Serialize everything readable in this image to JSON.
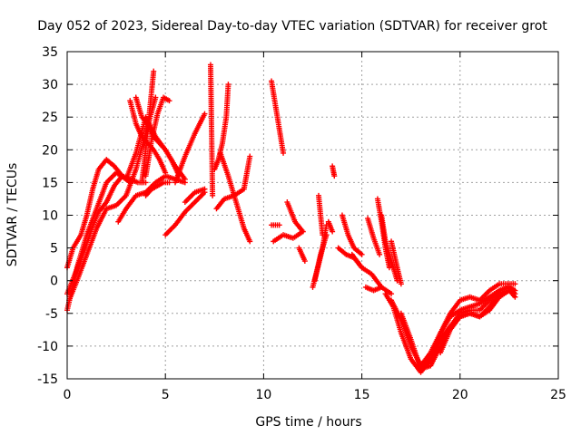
{
  "chart_data": {
    "type": "scatter",
    "title": "Day 052 of 2023, Sidereal Day-to-day VTEC variation (SDTVAR) for receiver grot",
    "xlabel": "GPS time / hours",
    "ylabel": "SDTVAR / TECUs",
    "xlim": [
      0,
      25
    ],
    "ylim": [
      -15,
      35
    ],
    "xticks": [
      0,
      5,
      10,
      15,
      20,
      25
    ],
    "yticks": [
      -15,
      -10,
      -5,
      0,
      5,
      10,
      15,
      20,
      25,
      30,
      35
    ],
    "grid": true,
    "marker": "plus",
    "color": "#ff0000",
    "series": [
      {
        "x": [
          0.0,
          0.5,
          1.0,
          1.5,
          2.0,
          2.5,
          3.0,
          3.5,
          4.0,
          4.5,
          5.0,
          5.5,
          6.0
        ],
        "y": [
          -4.5,
          2.0,
          7.0,
          11.0,
          15.0,
          16.5,
          15.5,
          19.5,
          25.0,
          22.0,
          20.0,
          17.5,
          15.5
        ]
      },
      {
        "x": [
          0.0,
          0.4,
          0.8,
          1.2,
          1.6,
          2.0,
          2.4,
          2.8,
          3.2,
          3.6,
          4.0
        ],
        "y": [
          -2.0,
          1.0,
          4.0,
          7.5,
          10.5,
          12.0,
          14.5,
          16.0,
          15.5,
          15.0,
          15.0
        ]
      },
      {
        "x": [
          0.0,
          0.3,
          0.7,
          1.0,
          1.3,
          1.6,
          2.0,
          2.4,
          2.8,
          3.2
        ],
        "y": [
          2.0,
          5.0,
          7.0,
          10.0,
          14.0,
          17.0,
          18.5,
          17.5,
          16.0,
          15.0
        ]
      },
      {
        "x": [
          0.1,
          0.5,
          1.0,
          1.5,
          2.0,
          2.5,
          3.0,
          3.5,
          4.0,
          4.5
        ],
        "y": [
          -3.0,
          0.0,
          4.0,
          8.0,
          11.0,
          11.5,
          13.0,
          17.0,
          22.5,
          28.0
        ]
      },
      {
        "x": [
          3.2,
          3.5,
          3.8,
          4.1,
          4.4,
          4.7,
          5.0
        ],
        "y": [
          27.5,
          24.0,
          22.0,
          21.0,
          20.0,
          18.5,
          16.5
        ]
      },
      {
        "x": [
          3.5,
          3.8,
          4.1,
          4.4,
          4.7,
          5.0,
          5.3,
          5.7
        ],
        "y": [
          28.0,
          25.0,
          24.0,
          22.0,
          21.0,
          20.0,
          18.5,
          16.0
        ]
      },
      {
        "x": [
          3.8,
          4.0,
          4.2,
          4.4
        ],
        "y": [
          15.0,
          20.0,
          26.0,
          32.0
        ]
      },
      {
        "x": [
          4.0,
          4.3,
          4.6,
          4.9,
          5.2
        ],
        "y": [
          16.0,
          21.5,
          25.5,
          28.0,
          27.5
        ]
      },
      {
        "x": [
          4.0,
          4.3,
          4.6,
          4.9,
          5.2
        ],
        "y": [
          13.0,
          14.0,
          14.5,
          15.0,
          15.0
        ]
      },
      {
        "x": [
          2.6,
          3.0,
          3.5,
          4.0,
          4.5,
          5.0,
          5.5,
          6.0
        ],
        "y": [
          9.0,
          11.0,
          13.0,
          13.5,
          15.0,
          16.0,
          15.5,
          15.0
        ]
      },
      {
        "x": [
          5.5,
          6.0,
          6.5,
          7.0
        ],
        "y": [
          15.0,
          19.0,
          22.5,
          25.5
        ]
      },
      {
        "x": [
          5.0,
          5.5,
          6.0,
          6.5,
          7.0
        ],
        "y": [
          7.0,
          8.5,
          10.5,
          12.0,
          13.5
        ]
      },
      {
        "x": [
          6.0,
          6.5,
          7.0
        ],
        "y": [
          12.0,
          13.5,
          14.0
        ]
      },
      {
        "x": [
          7.3,
          7.4
        ],
        "y": [
          33.0,
          13.0
        ]
      },
      {
        "x": [
          7.5,
          7.7,
          7.9,
          8.1,
          8.2
        ],
        "y": [
          17.0,
          18.5,
          21.0,
          25.0,
          30.0
        ]
      },
      {
        "x": [
          7.6,
          8.0,
          8.5,
          9.0,
          9.3
        ],
        "y": [
          11.0,
          12.5,
          13.0,
          14.0,
          19.0
        ]
      },
      {
        "x": [
          7.8,
          8.2,
          8.6,
          9.0,
          9.3
        ],
        "y": [
          19.5,
          16.0,
          12.0,
          8.0,
          6.0
        ]
      },
      {
        "x": [
          10.4,
          10.7,
          11.0
        ],
        "y": [
          30.5,
          25.0,
          19.5
        ]
      },
      {
        "x": [
          10.5,
          11.0,
          11.5,
          12.0
        ],
        "y": [
          6.0,
          7.0,
          6.5,
          7.5
        ]
      },
      {
        "x": [
          10.4,
          10.8
        ],
        "y": [
          8.5,
          8.5
        ]
      },
      {
        "x": [
          11.2,
          11.6,
          12.0
        ],
        "y": [
          12.0,
          9.0,
          7.5
        ]
      },
      {
        "x": [
          11.8,
          12.1
        ],
        "y": [
          5.0,
          3.0
        ]
      },
      {
        "x": [
          12.5,
          12.8,
          13.0,
          13.2
        ],
        "y": [
          -1.0,
          2.5,
          5.0,
          8.5
        ]
      },
      {
        "x": [
          12.6,
          12.9,
          13.2
        ],
        "y": [
          0.0,
          4.0,
          7.0
        ]
      },
      {
        "x": [
          12.8,
          13.0
        ],
        "y": [
          13.0,
          7.0
        ]
      },
      {
        "x": [
          13.3,
          13.5
        ],
        "y": [
          9.0,
          7.5
        ]
      },
      {
        "x": [
          13.5,
          13.6
        ],
        "y": [
          17.5,
          16.0
        ]
      },
      {
        "x": [
          13.8,
          14.2,
          14.6,
          15.0
        ],
        "y": [
          5.0,
          4.0,
          3.5,
          2.0
        ]
      },
      {
        "x": [
          14.0,
          14.3,
          14.6,
          15.0
        ],
        "y": [
          10.0,
          7.0,
          5.0,
          4.0
        ]
      },
      {
        "x": [
          14.5,
          15.0,
          15.5,
          16.0,
          16.5
        ],
        "y": [
          4.0,
          2.0,
          1.0,
          -1.0,
          -2.0
        ]
      },
      {
        "x": [
          15.2,
          15.6,
          16.0
        ],
        "y": [
          -1.0,
          -1.5,
          -1.0
        ]
      },
      {
        "x": [
          15.3,
          15.6,
          15.9
        ],
        "y": [
          9.5,
          6.5,
          4.0
        ]
      },
      {
        "x": [
          15.8,
          16.0,
          16.2,
          16.4
        ],
        "y": [
          12.5,
          9.0,
          5.0,
          2.0
        ]
      },
      {
        "x": [
          16.0,
          16.2,
          16.5,
          16.8
        ],
        "y": [
          10.0,
          6.0,
          3.0,
          0.0
        ]
      },
      {
        "x": [
          16.5,
          16.8,
          17.0
        ],
        "y": [
          6.0,
          2.0,
          -0.5
        ]
      },
      {
        "x": [
          16.2,
          16.6,
          17.0,
          17.5,
          18.0,
          18.5,
          19.0,
          19.5,
          20.0,
          20.5,
          21.0,
          21.5,
          22.0,
          22.5
        ],
        "y": [
          -2.0,
          -4.0,
          -8.0,
          -12.0,
          -14.0,
          -12.0,
          -9.0,
          -7.0,
          -5.5,
          -5.0,
          -5.5,
          -4.5,
          -2.5,
          -1.5
        ]
      },
      {
        "x": [
          16.5,
          17.0,
          17.5,
          18.0,
          18.5,
          19.0,
          19.5,
          20.0,
          20.5,
          21.0,
          21.5,
          22.0,
          22.5,
          22.8
        ],
        "y": [
          -3.0,
          -6.0,
          -10.0,
          -13.0,
          -12.0,
          -8.0,
          -5.0,
          -3.0,
          -2.5,
          -3.0,
          -1.5,
          -0.5,
          -0.5,
          -0.5
        ]
      },
      {
        "x": [
          17.0,
          17.5,
          18.0,
          18.5,
          19.0,
          19.5,
          20.0,
          20.5,
          21.0,
          21.5,
          22.0,
          22.5,
          22.8
        ],
        "y": [
          -5.0,
          -9.0,
          -13.5,
          -13.0,
          -10.0,
          -7.0,
          -5.0,
          -4.5,
          -4.5,
          -3.0,
          -1.5,
          -1.0,
          -1.5
        ]
      },
      {
        "x": [
          18.0,
          18.5,
          19.0,
          19.5,
          20.0,
          20.5,
          21.0,
          21.5,
          22.0,
          22.5,
          22.8
        ],
        "y": [
          -13.0,
          -11.0,
          -8.0,
          -5.5,
          -4.5,
          -4.0,
          -3.5,
          -2.5,
          -1.5,
          -1.0,
          -2.0
        ]
      },
      {
        "x": [
          19.0,
          19.5,
          20.0,
          20.5,
          21.0,
          21.5,
          22.0,
          22.5,
          22.8
        ],
        "y": [
          -11.0,
          -7.5,
          -5.5,
          -5.0,
          -5.5,
          -4.0,
          -2.0,
          -1.5,
          -2.5
        ]
      }
    ]
  }
}
